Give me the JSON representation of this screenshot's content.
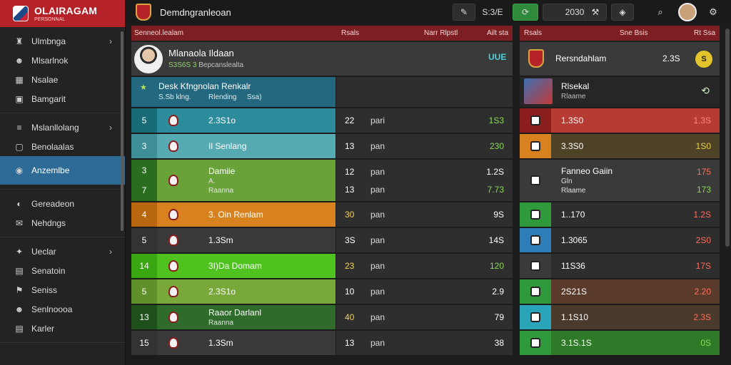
{
  "app": {
    "title": "OLAIRAGAM",
    "subtitle": "PERSONNAL"
  },
  "sidebar": {
    "groups": [
      [
        {
          "label": "Ulmbnga",
          "icon": "trophy-icon",
          "chevron": true
        },
        {
          "label": "Mlsarlnok",
          "icon": "people-icon",
          "chevron": false
        },
        {
          "label": "Nsalae",
          "icon": "calendar-icon",
          "chevron": false
        },
        {
          "label": "Bamgarit",
          "icon": "grid-icon",
          "chevron": false
        }
      ],
      [
        {
          "label": "Mslanllolang",
          "icon": "list-icon",
          "chevron": true
        },
        {
          "label": "Benolaalas",
          "icon": "square-icon",
          "chevron": false
        },
        {
          "label": "Anzemlbe",
          "icon": "globe-icon",
          "chevron": false,
          "active": true
        }
      ],
      [
        {
          "label": "Gereadeon",
          "icon": "shield-icon",
          "chevron": false
        },
        {
          "label": "Nehdngs",
          "icon": "speech-icon",
          "chevron": false
        }
      ],
      [
        {
          "label": "Ueclar",
          "icon": "star-icon",
          "chevron": true
        },
        {
          "label": "Senatoin",
          "icon": "box-icon",
          "chevron": false
        },
        {
          "label": "Seniss",
          "icon": "flag-icon",
          "chevron": false
        },
        {
          "label": "Senlnoooa",
          "icon": "people-icon",
          "chevron": false
        },
        {
          "label": "Karler",
          "icon": "box-icon",
          "chevron": false
        }
      ]
    ]
  },
  "topbar": {
    "heading": "Demdngranleoan",
    "score_label": "S:3/E",
    "year": "2030"
  },
  "main": {
    "headers": {
      "col1": "Senneol.lealam",
      "col2": "Rsals",
      "col3": "Narr Rlpstl",
      "col4": "Ailt sta"
    },
    "profile": {
      "name": "Mlanaola Ildaan",
      "highlight": "S3S6S 3",
      "sub": "Bepcanslealta",
      "tag": "UUE"
    },
    "feature": {
      "title": "Desk Kfngnolan Renkalr",
      "subtitle": "S.Sb klng.",
      "extra": "Rlending",
      "extra2": "Ssa)"
    },
    "rows": [
      {
        "rank": "5",
        "team": "2.3S1o",
        "team_sub": "",
        "num": "22",
        "txt": "pari",
        "pts": "1S3",
        "color": "#2c8c9c",
        "rank_color": "#1a6b78",
        "height": 36
      },
      {
        "rank": "3",
        "team": "Il Senlang",
        "team_sub": "",
        "num": "13",
        "txt": "pan",
        "pts": "230",
        "color": "#56aab2",
        "rank_color": "#3f8f98",
        "height": 36
      },
      {
        "rank": "3",
        "rank2": "7",
        "team": "Damiie",
        "team_sub": "A.",
        "team_sub2": "Raanna",
        "num": "12",
        "num2": "13",
        "txt": "pan",
        "pts": "1.2S",
        "pts2": "7.73",
        "color": "#6aa23a",
        "rank_color": "#2b6d1f",
        "height": 60
      },
      {
        "rank": "4",
        "team": "3. Oin Renlam",
        "team_sub": "",
        "num": "30",
        "txt": "pan",
        "pts": "9S",
        "color": "#d7821e",
        "rank_color": "#b9670f",
        "height": 36
      },
      {
        "rank": "5",
        "team": "1.3Sm",
        "team_sub": "",
        "num": "3S",
        "txt": "pan",
        "pts": "14S",
        "color": "#3a3a3a",
        "rank_color": "#333333",
        "height": 36
      },
      {
        "rank": "14",
        "team": "3I)Da Domam",
        "team_sub": "",
        "num": "23",
        "txt": "pan",
        "pts": "120",
        "color": "#4fc21f",
        "rank_color": "#3aa612",
        "height": 36
      },
      {
        "rank": "5",
        "team": "2.3S1o",
        "team_sub": "",
        "num": "10",
        "txt": "pan",
        "pts": "2.9",
        "color": "#78a83a",
        "rank_color": "#5f9029",
        "height": 36
      },
      {
        "rank": "13",
        "team": "Raaor Darlanl",
        "team_sub": "Raanna",
        "num": "40",
        "txt": "pan",
        "pts": "79",
        "color": "#2f6b2a",
        "rank_color": "#1f4f1b",
        "height": 36
      },
      {
        "rank": "15",
        "team": "1.3Sm",
        "team_sub": "",
        "num": "13",
        "txt": "pan",
        "pts": "38",
        "color": "#3a3a3a",
        "rank_color": "#333333",
        "height": 36
      }
    ]
  },
  "side": {
    "headers": {
      "col1": "Rsals",
      "col2": "Sne Bsis",
      "col3": "Rt Ssa"
    },
    "top": {
      "title": "Rersndahlam",
      "value": "2.3S",
      "coin": "S"
    },
    "news": {
      "title": "Rlsekal",
      "sub": "Rlaame"
    },
    "rows": [
      {
        "val": "1.3S0",
        "sub": "",
        "score": "1.3S",
        "tile": "#8b1d1d",
        "bg": "#b53b33",
        "score_color": "#ff8a80",
        "height": 36
      },
      {
        "val": "3.3S0",
        "sub": "",
        "score": "1S0",
        "tile": "#d7821e",
        "bg": "#4e4327",
        "score_color": "#e8d04a",
        "height": 36
      },
      {
        "val": "Fanneo Gaiin",
        "sub": "Gln",
        "sub2": "Rlaame",
        "score": "175",
        "score2": "173",
        "tile": "#3a3a3a",
        "bg": "#3a3a3a",
        "score_color": "#ff6d5e",
        "score2_color": "#8cd957",
        "height": 60
      },
      {
        "val": "1..170",
        "sub": "",
        "score": "1.2S",
        "tile": "#2f9a3c",
        "bg": "#2e2e2e",
        "score_color": "#ff6d5e",
        "height": 36
      },
      {
        "val": "1.3065",
        "sub": "",
        "score": "2S0",
        "tile": "#2d7db8",
        "bg": "#2e2e2e",
        "score_color": "#ff6d5e",
        "height": 36
      },
      {
        "val": "11S36",
        "sub": "",
        "score": "17S",
        "tile": "#3a3a3a",
        "bg": "#2e2e2e",
        "score_color": "#ff6d5e",
        "height": 36
      },
      {
        "val": "2S21S",
        "sub": "",
        "score": "2.20",
        "tile": "#2f9a3c",
        "bg": "#5a3a2b",
        "score_color": "#ff6d5e",
        "height": 36
      },
      {
        "val": "1.1S10",
        "sub": "",
        "score": "2.3S",
        "tile": "#2aa4b8",
        "bg": "#4a3a2b",
        "score_color": "#ff6d5e",
        "height": 36
      },
      {
        "val": "3.1S.1S",
        "sub": "",
        "score": "0S",
        "tile": "#2f9a3c",
        "bg": "#2f7a28",
        "score_color": "#8cd957",
        "height": 36
      }
    ]
  }
}
